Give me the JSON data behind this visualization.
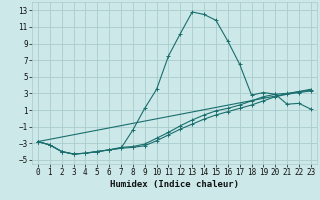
{
  "xlabel": "Humidex (Indice chaleur)",
  "background_color": "#cce8e8",
  "grid_color": "#aacccc",
  "line_color": "#1a6e6e",
  "xlim": [
    -0.5,
    23.5
  ],
  "ylim": [
    -5.5,
    14.0
  ],
  "xticks": [
    0,
    1,
    2,
    3,
    4,
    5,
    6,
    7,
    8,
    9,
    10,
    11,
    12,
    13,
    14,
    15,
    16,
    17,
    18,
    19,
    20,
    21,
    22,
    23
  ],
  "yticks": [
    -5,
    -3,
    -1,
    1,
    3,
    5,
    7,
    9,
    11,
    13
  ],
  "series1": {
    "x": [
      0,
      1,
      2,
      3,
      4,
      5,
      6,
      7,
      8,
      9,
      10,
      11,
      12,
      13,
      14,
      15,
      16,
      17,
      18,
      19,
      20,
      21,
      22,
      23
    ],
    "y": [
      -2.8,
      -3.2,
      -4.0,
      -4.3,
      -4.2,
      -4.0,
      -3.8,
      -3.6,
      -1.4,
      1.2,
      3.5,
      7.5,
      10.2,
      12.8,
      12.5,
      11.8,
      9.3,
      6.5,
      2.8,
      3.1,
      2.9,
      1.7,
      1.8,
      1.1
    ]
  },
  "series2": {
    "x": [
      0,
      1,
      2,
      3,
      4,
      5,
      6,
      7,
      8,
      9,
      10,
      11,
      12,
      13,
      14,
      15,
      16,
      17,
      18,
      19,
      20,
      21,
      22,
      23
    ],
    "y": [
      -2.8,
      -3.2,
      -4.0,
      -4.3,
      -4.2,
      -4.0,
      -3.8,
      -3.6,
      -3.5,
      -3.3,
      -2.7,
      -2.0,
      -1.3,
      -0.7,
      -0.1,
      0.4,
      0.8,
      1.2,
      1.6,
      2.1,
      2.6,
      2.9,
      3.1,
      3.3
    ]
  },
  "series3": {
    "x": [
      0,
      1,
      2,
      3,
      4,
      5,
      6,
      7,
      8,
      9,
      10,
      11,
      12,
      13,
      14,
      15,
      16,
      17,
      18,
      19,
      20,
      21,
      22,
      23
    ],
    "y": [
      -2.8,
      -3.2,
      -4.0,
      -4.3,
      -4.2,
      -4.0,
      -3.8,
      -3.5,
      -3.4,
      -3.1,
      -2.4,
      -1.7,
      -0.9,
      -0.2,
      0.4,
      0.9,
      1.2,
      1.6,
      2.1,
      2.6,
      2.9,
      3.0,
      3.2,
      3.4
    ]
  },
  "series4": {
    "x": [
      0,
      23
    ],
    "y": [
      -2.8,
      3.5
    ]
  },
  "tick_fontsize": 5.5,
  "xlabel_fontsize": 6.5
}
